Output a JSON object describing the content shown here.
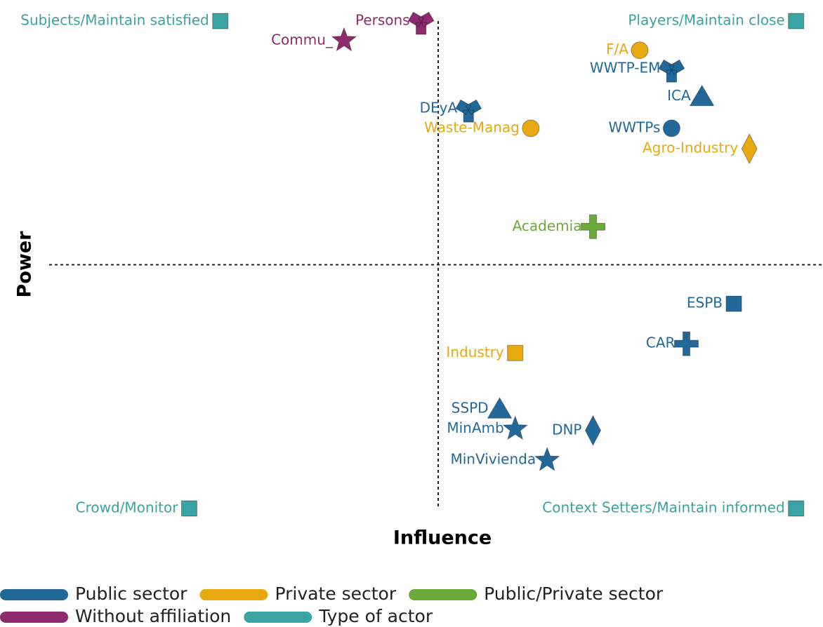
{
  "chart_data": {
    "type": "scatter",
    "xlabel": "Influence",
    "ylabel": "Power",
    "xlim": [
      0,
      10
    ],
    "ylim": [
      0,
      10
    ],
    "quadrant_lines": {
      "x": 5,
      "y": 5
    },
    "legend": "bottom",
    "series": [
      {
        "name": "Public sector",
        "color": "#22699a",
        "labels": [
          "WWTP-EM",
          "ICA",
          "DEyA",
          "WWTPs",
          "ESPB",
          "CAR",
          "SSPD",
          "MinAmb",
          "DNP",
          "MinVivienda"
        ],
        "markers": [
          "tri",
          "triangle",
          "tri",
          "circle",
          "square",
          "cross",
          "triangle",
          "star",
          "diamond",
          "star"
        ],
        "x": [
          8.0,
          8.39,
          5.39,
          8.0,
          8.8,
          8.19,
          5.79,
          5.99,
          6.99,
          6.4
        ],
        "y": [
          9.02,
          8.45,
          8.2,
          7.8,
          4.2,
          3.38,
          2.04,
          1.63,
          1.6,
          0.99
        ]
      },
      {
        "name": "Private sector",
        "color": "#e8a810",
        "labels": [
          "F/A",
          "Waste-Manag",
          "Agro-Industry",
          "Industry"
        ],
        "markers": [
          "circle",
          "circle",
          "diamond",
          "square"
        ],
        "x": [
          7.59,
          6.19,
          9.0,
          5.99
        ],
        "y": [
          9.4,
          7.8,
          7.38,
          3.19
        ]
      },
      {
        "name": "Public/Private sector",
        "color": "#6aaa3a",
        "labels": [
          "Academia"
        ],
        "markers": [
          "cross"
        ],
        "x": [
          6.99
        ],
        "y": [
          5.78
        ]
      },
      {
        "name": "Without affiliation",
        "color": "#8e2b6e",
        "labels": [
          "Persons",
          "Commu_"
        ],
        "markers": [
          "tri",
          "star"
        ],
        "x": [
          4.78,
          3.79
        ],
        "y": [
          10,
          9.6
        ]
      },
      {
        "name": "Type of actor",
        "color": "#3aa3a3",
        "labels": [
          "Subjects/Maintain satisfied",
          "Players/Maintain close",
          "Crowd/Monitor",
          "Context Setters/Maintain informed"
        ],
        "markers": [
          "square",
          "square",
          "square",
          "square"
        ],
        "x": [
          2.2,
          9.6,
          1.8,
          9.6
        ],
        "y": [
          10,
          10,
          0,
          0
        ]
      }
    ]
  }
}
